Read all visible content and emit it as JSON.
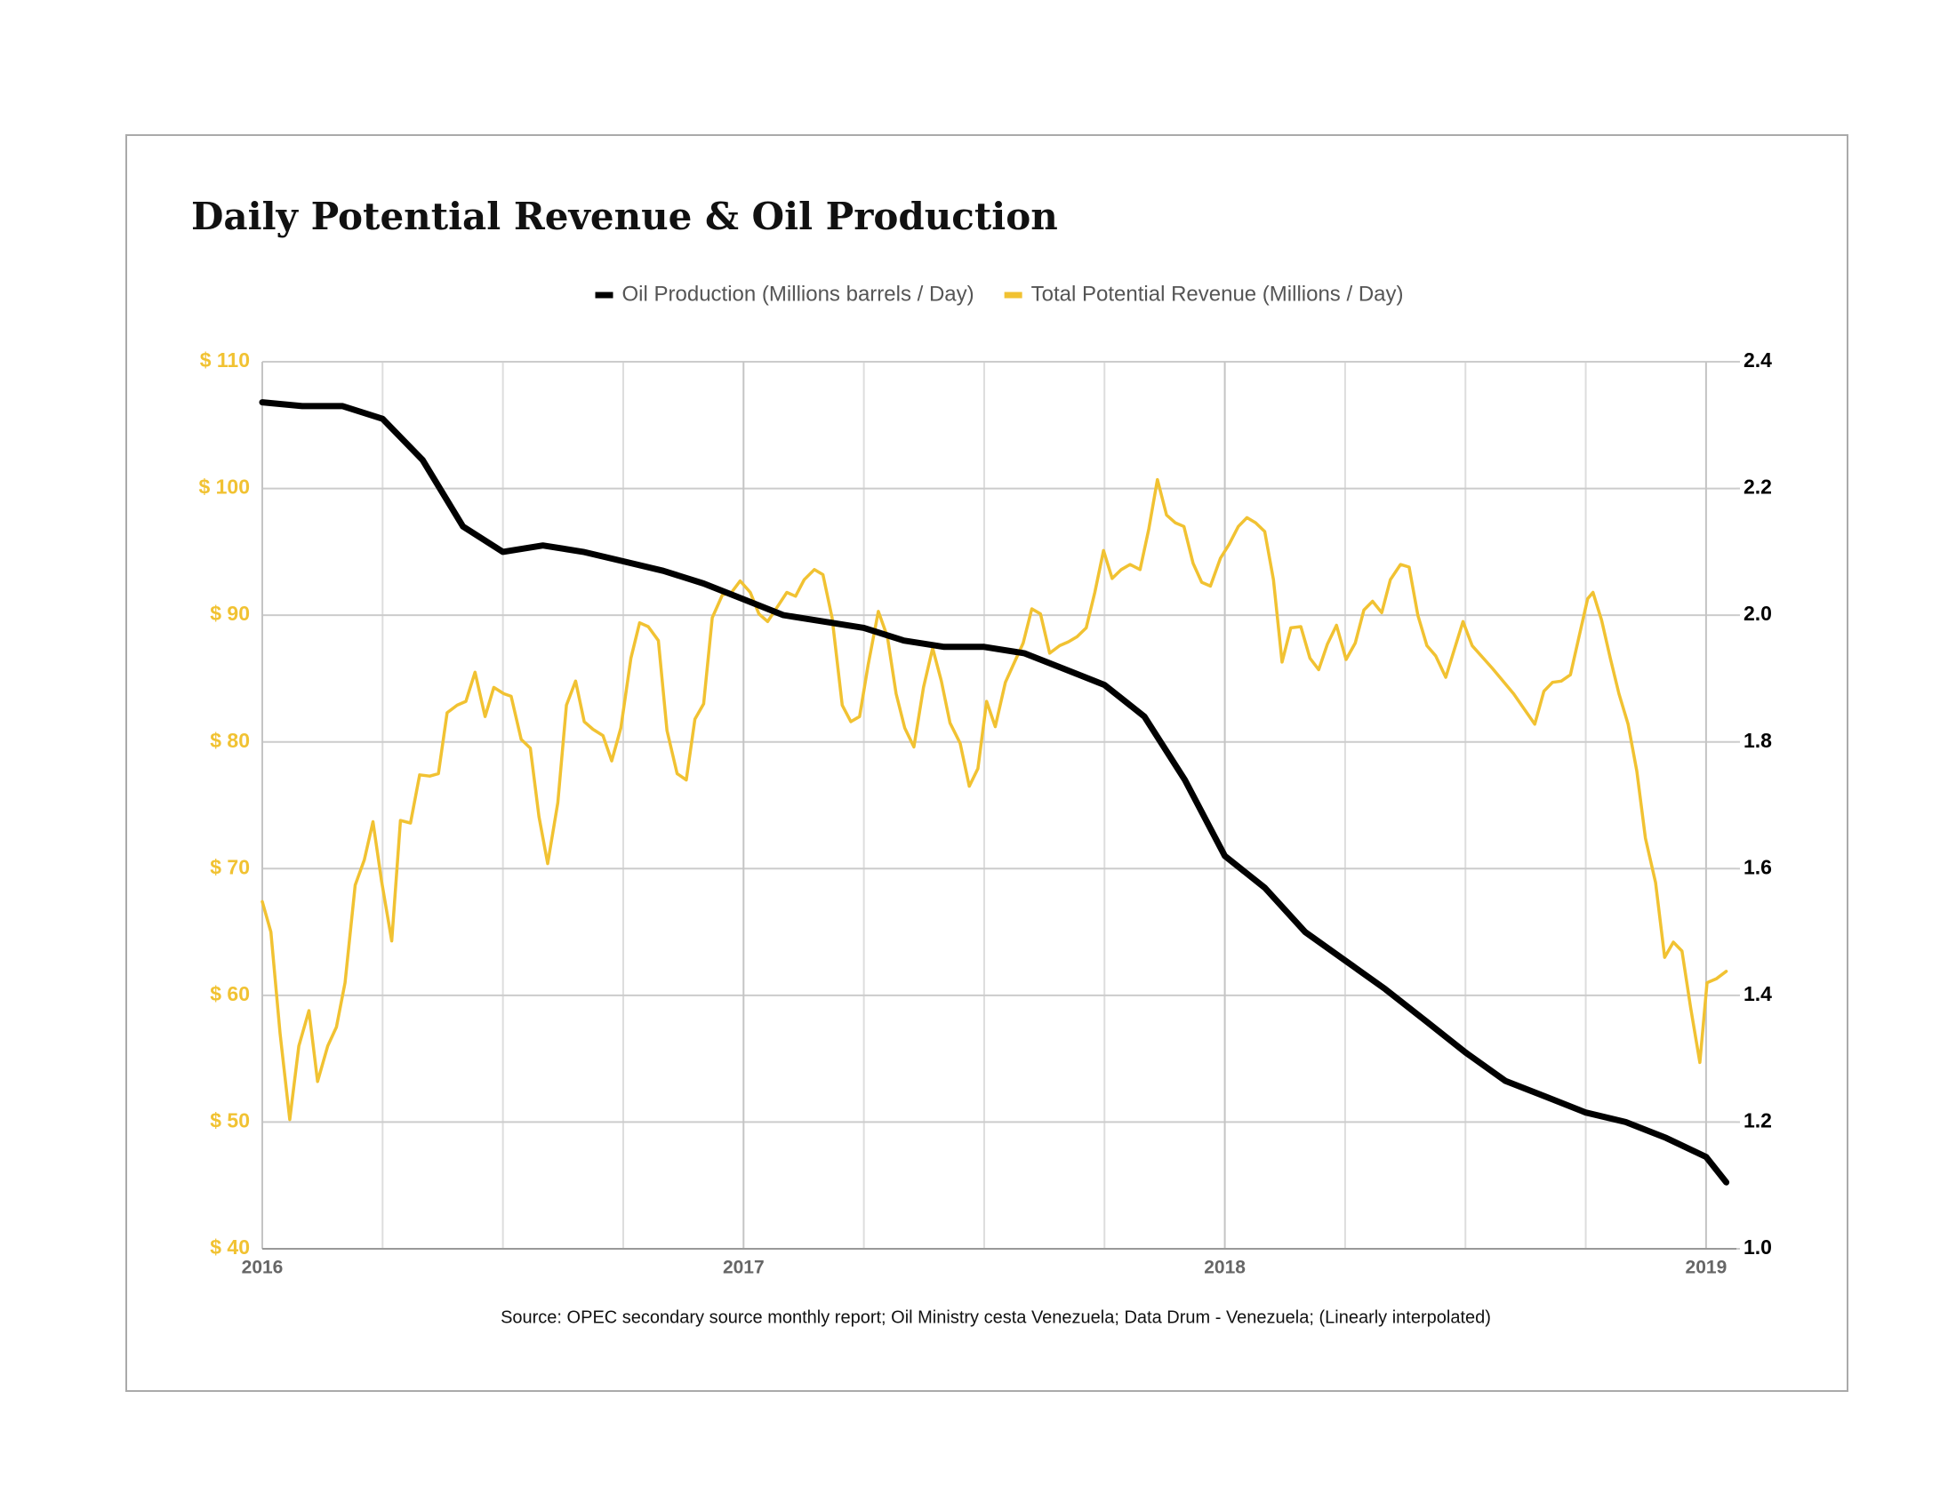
{
  "chart_data": {
    "type": "line",
    "title": "Daily Potential Revenue & Oil Production",
    "note": "Source: OPEC secondary source monthly report; Oil Ministry cesta Venezuela; Data Drum - Venezuela; (Linearly interpolated)",
    "xlim": [
      2016,
      2019.063
    ],
    "xticks": [
      2016,
      2017,
      2018,
      2019
    ],
    "x_minor_ticks": [
      2016.25,
      2016.5,
      2016.75,
      2017.25,
      2017.5,
      2017.75,
      2018.25,
      2018.5,
      2018.75
    ],
    "ylim": [
      40,
      110
    ],
    "yticks": [
      {
        "value": 40,
        "label": "$ 40"
      },
      {
        "value": 50,
        "label": "$ 50"
      },
      {
        "value": 60,
        "label": "$ 60"
      },
      {
        "value": 70,
        "label": "$ 70"
      },
      {
        "value": 80,
        "label": "$ 80"
      },
      {
        "value": 90,
        "label": "$ 90"
      },
      {
        "value": 100,
        "label": "$ 100"
      },
      {
        "value": 110,
        "label": "$ 110"
      }
    ],
    "y2lim": [
      1.0,
      2.4
    ],
    "y2ticks": [
      {
        "value": 1,
        "label": "1.0"
      },
      1.2,
      1.4,
      1.6,
      1.8,
      {
        "value": 2,
        "label": "2.0"
      },
      2.2,
      2.4
    ],
    "grid": true,
    "legend": "top",
    "series": [
      {
        "name": "Oil Production (Millions barrels / Day)",
        "color": "#000000",
        "axis": "y2",
        "x": [
          2016,
          2016.083,
          2016.167,
          2016.25,
          2016.333,
          2016.417,
          2016.5,
          2016.583,
          2016.667,
          2016.75,
          2016.833,
          2016.917,
          2017,
          2017.083,
          2017.167,
          2017.25,
          2017.333,
          2017.417,
          2017.5,
          2017.583,
          2017.667,
          2017.75,
          2017.833,
          2017.917,
          2018,
          2018.083,
          2018.167,
          2018.25,
          2018.333,
          2018.417,
          2018.5,
          2018.583,
          2018.667,
          2018.75,
          2018.833,
          2018.917,
          2019,
          2019.042
        ],
        "values": [
          2.336,
          2.33,
          2.33,
          2.31,
          2.245,
          2.14,
          2.1,
          2.11,
          2.1,
          2.085,
          2.07,
          2.05,
          2.025,
          2.0,
          1.99,
          1.98,
          1.96,
          1.95,
          1.95,
          1.94,
          1.915,
          1.89,
          1.84,
          1.74,
          1.62,
          1.57,
          1.5,
          1.455,
          1.41,
          1.36,
          1.31,
          1.265,
          1.24,
          1.215,
          1.2,
          1.175,
          1.145,
          1.105
        ]
      },
      {
        "name": "Total Potential Revenue (Millions / Day)",
        "color": "#f1c232",
        "x": [
          2016.0,
          2016.018,
          2016.037,
          2016.057,
          2016.076,
          2016.097,
          2016.115,
          2016.136,
          2016.154,
          2016.172,
          2016.193,
          2016.212,
          2016.23,
          2016.248,
          2016.269,
          2016.287,
          2016.308,
          2016.327,
          2016.348,
          2016.366,
          2016.384,
          2016.405,
          2016.423,
          2016.442,
          2016.463,
          2016.481,
          2016.502,
          2016.517,
          2016.538,
          2016.557,
          2016.575,
          2016.593,
          2016.614,
          2016.632,
          2016.651,
          2016.669,
          2016.687,
          2016.708,
          2016.726,
          2016.745,
          2016.766,
          2016.784,
          2016.802,
          2016.823,
          2016.841,
          2016.862,
          2016.881,
          2016.899,
          2016.917,
          2016.935,
          2016.956,
          2016.975,
          2016.993,
          2017.014,
          2017.032,
          2017.05,
          2017.071,
          2017.09,
          2017.108,
          2017.126,
          2017.147,
          2017.165,
          2017.184,
          2017.205,
          2017.223,
          2017.241,
          2017.259,
          2017.28,
          2017.299,
          2017.317,
          2017.335,
          2017.354,
          2017.374,
          2017.393,
          2017.411,
          2017.429,
          2017.45,
          2017.469,
          2017.487,
          2017.505,
          2017.523,
          2017.544,
          2017.563,
          2017.581,
          2017.599,
          2017.617,
          2017.636,
          2017.657,
          2017.675,
          2017.693,
          2017.712,
          2017.73,
          2017.748,
          2017.766,
          2017.785,
          2017.803,
          2017.824,
          2017.842,
          2017.86,
          2017.879,
          2017.897,
          2017.915,
          2017.934,
          2017.952,
          2017.97,
          2017.991,
          2018.009,
          2018.028,
          2018.046,
          2018.064,
          2018.083,
          2018.101,
          2018.119,
          2018.137,
          2018.158,
          2018.177,
          2018.195,
          2018.213,
          2018.232,
          2018.252,
          2018.271,
          2018.289,
          2018.307,
          2018.326,
          2018.344,
          2018.365,
          2018.383,
          2018.401,
          2018.42,
          2018.438,
          2018.459,
          2018.477,
          2018.495,
          2018.514,
          2018.556,
          2018.6,
          2018.644,
          2018.663,
          2018.681,
          2018.699,
          2018.718,
          2018.736,
          2018.754,
          2018.765,
          2018.783,
          2018.801,
          2018.819,
          2018.838,
          2018.856,
          2018.874,
          2018.895,
          2018.914,
          2018.932,
          2018.95,
          2018.968,
          2018.987,
          2019.002,
          2019.021,
          2019.042
        ],
        "values": [
          67.4,
          65.0,
          57,
          50.2,
          56,
          58.8,
          53.2,
          56,
          57.5,
          61,
          68.7,
          70.7,
          73.7,
          69,
          64.3,
          73.8,
          73.6,
          77.4,
          77.3,
          77.5,
          82.3,
          82.9,
          83.2,
          85.5,
          82,
          84.3,
          83.8,
          83.6,
          80.2,
          79.5,
          74.1,
          70.4,
          75.2,
          82.9,
          84.8,
          81.6,
          81,
          80.5,
          78.5,
          81.1,
          86.6,
          89.4,
          89.1,
          88,
          80.9,
          77.5,
          77,
          81.8,
          83,
          89.8,
          91.6,
          91.8,
          92.7,
          91.8,
          90.1,
          89.5,
          90.7,
          91.8,
          91.5,
          92.8,
          93.6,
          93.2,
          89.8,
          82.9,
          81.6,
          82,
          86.1,
          90.3,
          88.3,
          83.8,
          81.1,
          79.6,
          84.3,
          87.4,
          84.8,
          81.5,
          79.9,
          76.5,
          77.9,
          83.2,
          81.2,
          84.7,
          86.3,
          87.8,
          90.5,
          90.1,
          87,
          87.6,
          87.9,
          88.3,
          89,
          91.8,
          95.1,
          92.9,
          93.6,
          94,
          93.6,
          96.8,
          100.7,
          97.9,
          97.3,
          97,
          94.1,
          92.6,
          92.3,
          94.5,
          95.6,
          97,
          97.7,
          97.3,
          96.6,
          92.8,
          86.3,
          89,
          89.1,
          86.6,
          85.7,
          87.7,
          89.2,
          86.5,
          87.8,
          90.4,
          91.1,
          90.2,
          92.8,
          94,
          93.8,
          90,
          87.6,
          86.8,
          85.1,
          87.3,
          89.5,
          87.6,
          85.8,
          83.8,
          81.4,
          84,
          84.7,
          84.8,
          85.3,
          88.3,
          91.3,
          91.8,
          89.6,
          86.6,
          83.8,
          81.4,
          77.7,
          72.4,
          68.9,
          63,
          64.2,
          63.5,
          59,
          54.7,
          61,
          61.3,
          61.9
        ]
      }
    ]
  }
}
